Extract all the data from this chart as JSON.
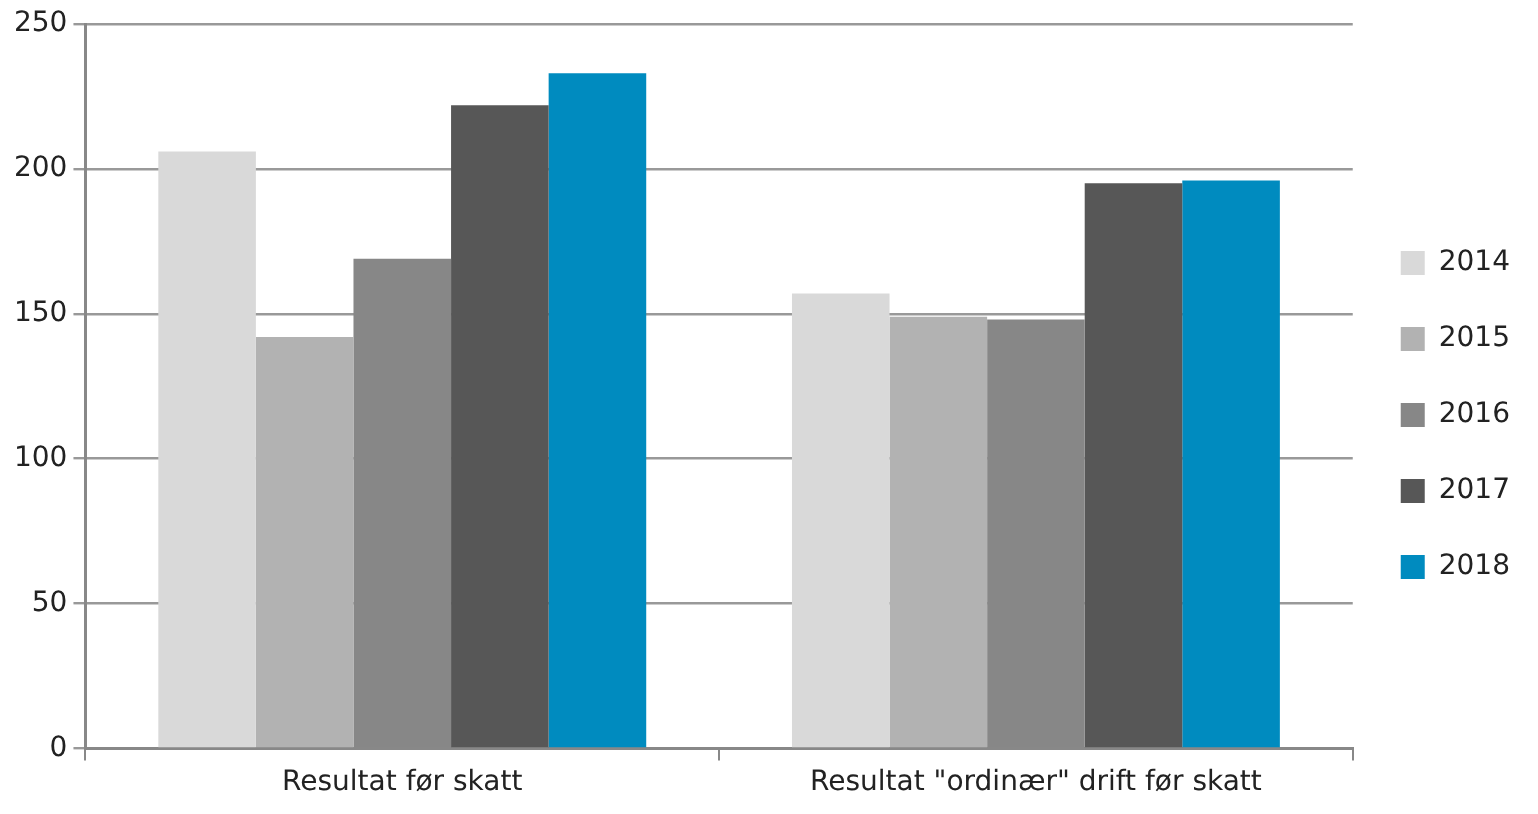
{
  "chart_data": {
    "type": "bar",
    "categories": [
      "Resultat før skatt",
      "Resultat \"ordinær\" drift før skatt"
    ],
    "series": [
      {
        "name": "2014",
        "color": "#d9d9d9",
        "values": [
          206,
          157
        ]
      },
      {
        "name": "2015",
        "color": "#b2b2b2",
        "values": [
          142,
          149
        ]
      },
      {
        "name": "2016",
        "color": "#878787",
        "values": [
          169,
          148
        ]
      },
      {
        "name": "2017",
        "color": "#575757",
        "values": [
          222,
          195
        ]
      },
      {
        "name": "2018",
        "color": "#008bbf",
        "values": [
          233,
          196
        ]
      }
    ],
    "ylim": [
      0,
      250
    ],
    "yticks": [
      0,
      50,
      100,
      150,
      200,
      250
    ],
    "grid": "y",
    "legend": "right"
  }
}
